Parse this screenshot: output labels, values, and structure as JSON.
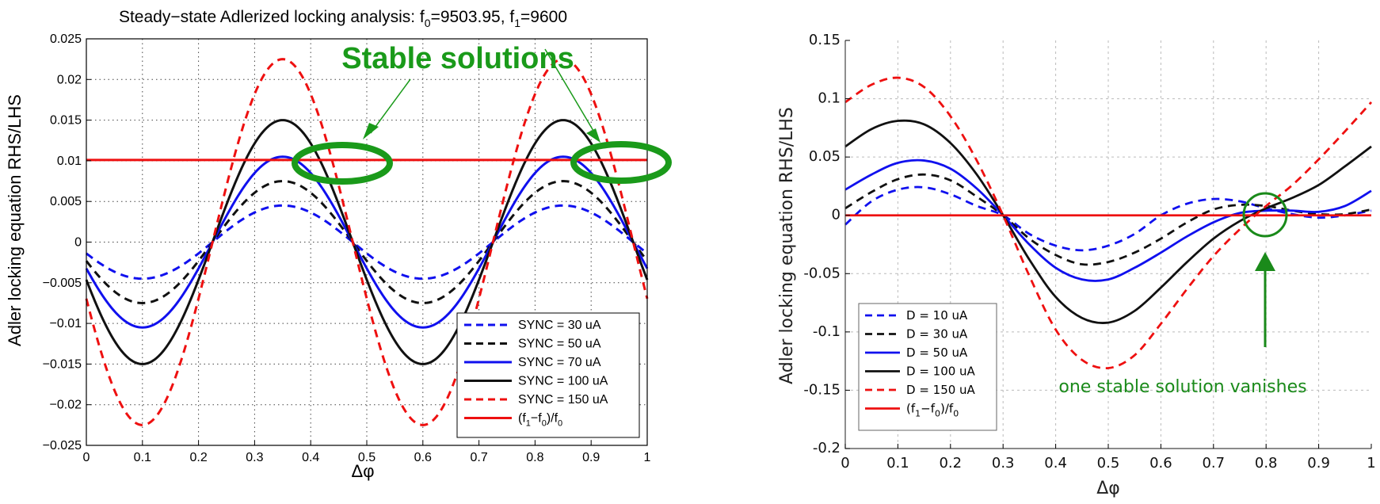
{
  "chart_data": [
    {
      "type": "line",
      "title": "Steady−state Adlerized locking analysis: f0=9503.95, f1=9600",
      "title_parts": {
        "prefix": "Steady−state Adlerized locking analysis: f",
        "sub0": "0",
        "mid": "=9503.95, f",
        "sub1": "1",
        "suffix": "=9600"
      },
      "xlabel": "Δφ",
      "ylabel": "Adler locking equation RHS/LHS",
      "xlim": [
        0,
        1
      ],
      "ylim": [
        -0.025,
        0.025
      ],
      "xticks": [
        "0",
        "0.1",
        "0.2",
        "0.3",
        "0.4",
        "0.5",
        "0.6",
        "0.7",
        "0.8",
        "0.9",
        "1"
      ],
      "yticks": [
        "0.025",
        "0.02",
        "0.015",
        "0.01",
        "0.005",
        "0",
        "−0.005",
        "−0.01",
        "−0.015",
        "−0.02",
        "−0.025"
      ],
      "ytick_values": [
        0.025,
        0.02,
        0.015,
        0.01,
        0.005,
        0,
        -0.005,
        -0.01,
        -0.015,
        -0.02,
        -0.025
      ],
      "grid": true,
      "legend_position": "bottom-right",
      "series": [
        {
          "name": "SYNC = 30 uA",
          "color": "#1010ee",
          "dash": "dashed",
          "amplitude": 0.0045,
          "period": 0.5,
          "peak_at": 0.35,
          "offset": 0
        },
        {
          "name": "SYNC = 50 uA",
          "color": "#111111",
          "dash": "dashed",
          "amplitude": 0.0075,
          "period": 0.5,
          "peak_at": 0.35,
          "offset": 0
        },
        {
          "name": "SYNC = 70 uA",
          "color": "#1010ee",
          "dash": "solid",
          "amplitude": 0.0105,
          "period": 0.5,
          "peak_at": 0.35,
          "offset": 0
        },
        {
          "name": "SYNC = 100 uA",
          "color": "#111111",
          "dash": "solid",
          "amplitude": 0.015,
          "period": 0.5,
          "peak_at": 0.35,
          "offset": 0
        },
        {
          "name": "SYNC = 150 uA",
          "color": "#ee1010",
          "dash": "dashed",
          "amplitude": 0.0225,
          "period": 0.5,
          "peak_at": 0.35,
          "offset": 0
        },
        {
          "name": "(f1−f0)/f0",
          "legend_parts": [
            "(f",
            "1",
            "−f",
            "0",
            ")/f",
            "0"
          ],
          "color": "#ee1010",
          "dash": "solid",
          "constant": 0.0101
        }
      ],
      "annotations": [
        {
          "text": "Stable solutions",
          "color": "#1a9a1a",
          "targets": [
            [
              0.46,
              0.01
            ],
            [
              0.955,
              0.01
            ]
          ]
        }
      ]
    },
    {
      "type": "line",
      "title": "",
      "xlabel": "Δφ",
      "ylabel": "Adler locking equation RHS/LHS",
      "xlim": [
        0,
        1
      ],
      "ylim": [
        -0.2,
        0.15
      ],
      "xticks": [
        "0",
        "0.1",
        "0.2",
        "0.3",
        "0.4",
        "0.5",
        "0.6",
        "0.7",
        "0.8",
        "0.9",
        "1"
      ],
      "yticks": [
        "0.15",
        "0.1",
        "0.05",
        "0",
        "-0.05",
        "-0.1",
        "-0.15",
        "-0.2"
      ],
      "ytick_values": [
        0.15,
        0.1,
        0.05,
        0,
        -0.05,
        -0.1,
        -0.15,
        -0.2
      ],
      "grid": true,
      "legend_position": "bottom-left",
      "series": [
        {
          "name": "D = 10 uA",
          "color": "#1010ee",
          "dash": "dashed",
          "points": [
            [
              0,
              -0.008
            ],
            [
              0.05,
              0.012
            ],
            [
              0.1,
              0.022
            ],
            [
              0.15,
              0.024
            ],
            [
              0.2,
              0.018
            ],
            [
              0.25,
              0.008
            ],
            [
              0.3,
              0
            ],
            [
              0.35,
              -0.016
            ],
            [
              0.4,
              -0.026
            ],
            [
              0.45,
              -0.03
            ],
            [
              0.5,
              -0.026
            ],
            [
              0.55,
              -0.016
            ],
            [
              0.6,
              0
            ],
            [
              0.65,
              0.01
            ],
            [
              0.7,
              0.014
            ],
            [
              0.75,
              0.012
            ],
            [
              0.8,
              0.006
            ],
            [
              0.85,
              0.001
            ],
            [
              0.9,
              -0.002
            ],
            [
              0.95,
              0
            ],
            [
              1,
              0.004
            ]
          ]
        },
        {
          "name": "D = 30 uA",
          "color": "#111111",
          "dash": "dashed",
          "points": [
            [
              0,
              0.006
            ],
            [
              0.05,
              0.02
            ],
            [
              0.1,
              0.031
            ],
            [
              0.15,
              0.035
            ],
            [
              0.2,
              0.03
            ],
            [
              0.25,
              0.016
            ],
            [
              0.3,
              0
            ],
            [
              0.35,
              -0.02
            ],
            [
              0.4,
              -0.034
            ],
            [
              0.45,
              -0.042
            ],
            [
              0.5,
              -0.04
            ],
            [
              0.55,
              -0.032
            ],
            [
              0.6,
              -0.02
            ],
            [
              0.65,
              -0.006
            ],
            [
              0.7,
              0.005
            ],
            [
              0.75,
              0.009
            ],
            [
              0.8,
              0.008
            ],
            [
              0.85,
              0.004
            ],
            [
              0.9,
              0.001
            ],
            [
              0.95,
              0.001
            ],
            [
              1,
              0.005
            ]
          ]
        },
        {
          "name": "D = 50 uA",
          "color": "#1010ee",
          "dash": "solid",
          "points": [
            [
              0,
              0.022
            ],
            [
              0.05,
              0.035
            ],
            [
              0.1,
              0.045
            ],
            [
              0.15,
              0.047
            ],
            [
              0.2,
              0.04
            ],
            [
              0.25,
              0.023
            ],
            [
              0.3,
              0
            ],
            [
              0.35,
              -0.025
            ],
            [
              0.4,
              -0.045
            ],
            [
              0.45,
              -0.055
            ],
            [
              0.5,
              -0.055
            ],
            [
              0.55,
              -0.045
            ],
            [
              0.6,
              -0.032
            ],
            [
              0.65,
              -0.018
            ],
            [
              0.7,
              -0.006
            ],
            [
              0.75,
              0.002
            ],
            [
              0.8,
              0.004
            ],
            [
              0.85,
              0.004
            ],
            [
              0.9,
              0.003
            ],
            [
              0.95,
              0.008
            ],
            [
              1,
              0.021
            ]
          ]
        },
        {
          "name": "D = 100 uA",
          "color": "#111111",
          "dash": "solid",
          "points": [
            [
              0,
              0.059
            ],
            [
              0.05,
              0.074
            ],
            [
              0.1,
              0.081
            ],
            [
              0.15,
              0.078
            ],
            [
              0.2,
              0.062
            ],
            [
              0.25,
              0.035
            ],
            [
              0.3,
              0
            ],
            [
              0.35,
              -0.038
            ],
            [
              0.4,
              -0.07
            ],
            [
              0.45,
              -0.088
            ],
            [
              0.5,
              -0.092
            ],
            [
              0.55,
              -0.082
            ],
            [
              0.6,
              -0.062
            ],
            [
              0.65,
              -0.04
            ],
            [
              0.7,
              -0.02
            ],
            [
              0.75,
              -0.005
            ],
            [
              0.8,
              0.006
            ],
            [
              0.85,
              0.015
            ],
            [
              0.9,
              0.026
            ],
            [
              0.95,
              0.042
            ],
            [
              1,
              0.059
            ]
          ]
        },
        {
          "name": "D = 150 uA",
          "color": "#ee1010",
          "dash": "dashed",
          "points": [
            [
              0,
              0.097
            ],
            [
              0.05,
              0.112
            ],
            [
              0.1,
              0.118
            ],
            [
              0.15,
              0.11
            ],
            [
              0.2,
              0.085
            ],
            [
              0.25,
              0.047
            ],
            [
              0.3,
              0
            ],
            [
              0.35,
              -0.052
            ],
            [
              0.4,
              -0.098
            ],
            [
              0.45,
              -0.124
            ],
            [
              0.5,
              -0.131
            ],
            [
              0.55,
              -0.12
            ],
            [
              0.6,
              -0.093
            ],
            [
              0.65,
              -0.063
            ],
            [
              0.7,
              -0.035
            ],
            [
              0.75,
              -0.012
            ],
            [
              0.8,
              0.008
            ],
            [
              0.85,
              0.026
            ],
            [
              0.9,
              0.048
            ],
            [
              0.95,
              0.072
            ],
            [
              1,
              0.097
            ]
          ]
        },
        {
          "name": "(f1−f0)/f0",
          "legend_parts": [
            "(f",
            "1",
            "−f",
            "0",
            ")/f",
            "0"
          ],
          "color": "#ee1010",
          "dash": "solid",
          "constant": 0
        }
      ],
      "annotations": [
        {
          "text": "one stable solution vanishes",
          "color": "#1a8a1a",
          "target": [
            0.795,
            0.002
          ]
        }
      ]
    }
  ]
}
